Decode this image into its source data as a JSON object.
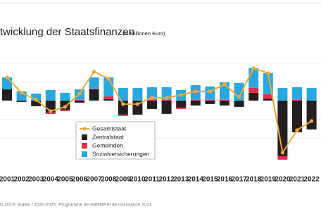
{
  "chart_data": {
    "type": "bar",
    "title": "twicklung der Staatsfinanzen",
    "subtitle": "(in Millionen Euro)",
    "source": "D 2019: Statec / 2020-2025: Programme de stabilité et de croissance 2021",
    "categories": [
      "2001",
      "2002",
      "2003",
      "2004",
      "2005",
      "2006",
      "2007",
      "2008",
      "2009",
      "2010",
      "2011",
      "2012",
      "2013",
      "2014",
      "2015",
      "2016",
      "2017",
      "2018",
      "2019",
      "2020",
      "2021",
      "2022"
    ],
    "ylim": [
      -3400,
      2900
    ],
    "series": [
      {
        "name": "Gesamtstaat",
        "type": "line",
        "color": "#f0a830",
        "values": [
          1155,
          385,
          35,
          -525,
          -315,
          350,
          1435,
          1085,
          -175,
          -175,
          140,
          140,
          280,
          455,
          455,
          805,
          175,
          1610,
          1365,
          -2590,
          -1470,
          -1015
        ]
      },
      {
        "name": "Zentralstaat",
        "type": "bar",
        "color": "#231f20",
        "values": [
          560,
          -70,
          -280,
          -595,
          -455,
          -105,
          560,
          70,
          -700,
          -700,
          -420,
          -665,
          -350,
          -245,
          -175,
          -245,
          -315,
          385,
          105,
          -2765,
          -1575,
          -1435
        ]
      },
      {
        "name": "Gemeinden",
        "type": "bar",
        "color": "#e8294a",
        "values": [
          0,
          0,
          0,
          -70,
          -70,
          35,
          35,
          140,
          -70,
          0,
          35,
          35,
          -70,
          35,
          35,
          35,
          0,
          245,
          210,
          -175,
          35,
          0
        ]
      },
      {
        "name": "Sozialversicherungen",
        "type": "bar",
        "color": "#29a8e0",
        "values": [
          595,
          455,
          350,
          525,
          385,
          525,
          560,
          945,
          630,
          630,
          630,
          630,
          525,
          735,
          665,
          875,
          875,
          980,
          1050,
          630,
          630,
          630
        ]
      }
    ]
  }
}
